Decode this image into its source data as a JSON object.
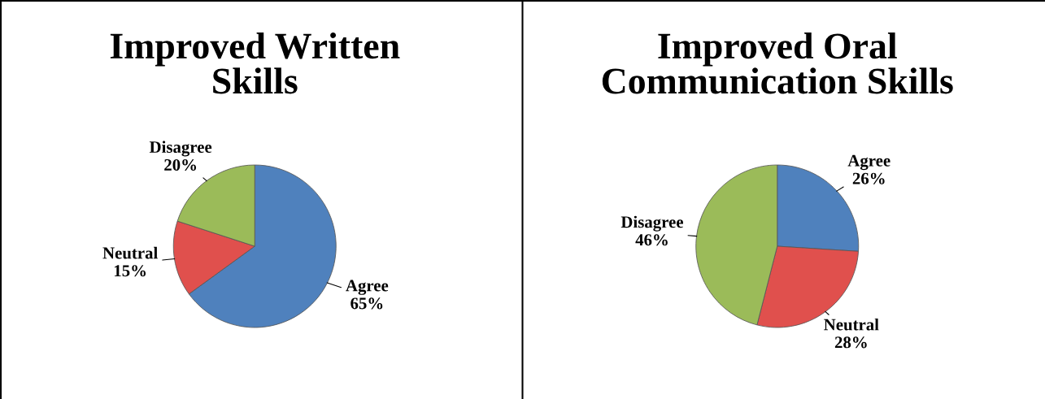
{
  "chart_data": [
    {
      "type": "pie",
      "title": "Improved Written\nSkills",
      "categories": [
        "Agree",
        "Neutral",
        "Disagree"
      ],
      "values": [
        65,
        15,
        20
      ],
      "value_labels": [
        "65%",
        "15%",
        "20%"
      ],
      "colors": [
        "#4f81bd",
        "#e0504d",
        "#9bbb59"
      ],
      "legend": false
    },
    {
      "type": "pie",
      "title": "Improved Oral\nCommunication Skills",
      "categories": [
        "Agree",
        "Neutral",
        "Disagree"
      ],
      "values": [
        26,
        28,
        46
      ],
      "value_labels": [
        "26%",
        "28%",
        "46%"
      ],
      "colors": [
        "#4f81bd",
        "#e0504d",
        "#9bbb59"
      ],
      "legend": false
    }
  ]
}
